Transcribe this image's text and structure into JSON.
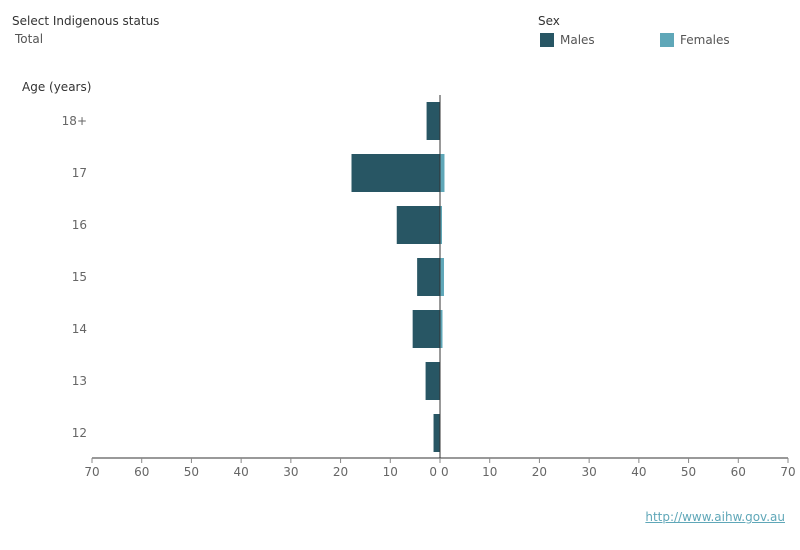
{
  "filter": {
    "label": "Select Indigenous status",
    "value": "Total"
  },
  "legend": {
    "title": "Sex",
    "males_label": "Males",
    "females_label": "Females"
  },
  "colors": {
    "males": "#285664",
    "females": "#5fa7b8",
    "axis": "#333333",
    "tick": "#888888"
  },
  "footer": {
    "link_text": "http://www.aihw.gov.au"
  },
  "chart_data": {
    "type": "bar",
    "orientation": "horizontal",
    "layout": "population-pyramid",
    "ylabel": "Age (years)",
    "categories": [
      "18+",
      "17",
      "16",
      "15",
      "14",
      "13",
      "12"
    ],
    "series": [
      {
        "name": "Males",
        "values": [
          2.7,
          17.8,
          8.7,
          4.6,
          5.5,
          2.9,
          1.3
        ]
      },
      {
        "name": "Females",
        "values": [
          0,
          0.9,
          0.4,
          0.8,
          0.5,
          0,
          0
        ]
      }
    ],
    "xlim": [
      0,
      70
    ],
    "x_ticks": [
      70,
      60,
      50,
      40,
      30,
      20,
      10,
      0
    ],
    "grid": false
  }
}
